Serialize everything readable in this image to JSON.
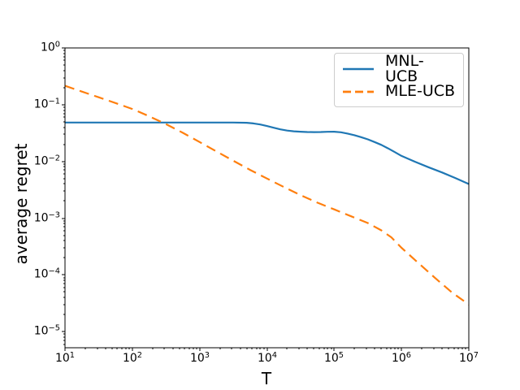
{
  "figure": {
    "background": "#ffffff",
    "axis_color": "#000000",
    "tick_label_color": "#000000"
  },
  "chart_data": {
    "type": "line",
    "title": "",
    "xlabel": "T",
    "ylabel": "average regret",
    "x_scale": "log",
    "y_scale": "log",
    "xlim": [
      10,
      10000000
    ],
    "ylim": [
      5.2e-06,
      1.0
    ],
    "grid": false,
    "legend": {
      "position": "upper right",
      "border_color": "#cccccc",
      "background": "#ffffff"
    },
    "x_ticks": [
      {
        "base": "10",
        "exp": "1",
        "value": 1
      },
      {
        "base": "10",
        "exp": "2",
        "value": 2
      },
      {
        "base": "10",
        "exp": "3",
        "value": 3
      },
      {
        "base": "10",
        "exp": "4",
        "value": 4
      },
      {
        "base": "10",
        "exp": "5",
        "value": 5
      },
      {
        "base": "10",
        "exp": "6",
        "value": 6
      },
      {
        "base": "10",
        "exp": "7",
        "value": 7
      }
    ],
    "y_ticks": [
      {
        "base": "10",
        "exp": "0",
        "value": 0
      },
      {
        "base": "10",
        "exp": "−1",
        "value": -1
      },
      {
        "base": "10",
        "exp": "−2",
        "value": -2
      },
      {
        "base": "10",
        "exp": "−3",
        "value": -3
      },
      {
        "base": "10",
        "exp": "−4",
        "value": -4
      },
      {
        "base": "10",
        "exp": "−5",
        "value": -5
      }
    ],
    "series": [
      {
        "name": "MNL-UCB",
        "color": "#1f77b4",
        "line_style": "solid",
        "points": [
          [
            10,
            0.0485
          ],
          [
            100,
            0.0485
          ],
          [
            1000,
            0.0485
          ],
          [
            3160,
            0.0485
          ],
          [
            5010,
            0.048
          ],
          [
            6310,
            0.0468
          ],
          [
            7940,
            0.0448
          ],
          [
            10000,
            0.042
          ],
          [
            12600,
            0.0392
          ],
          [
            15800,
            0.0368
          ],
          [
            20000,
            0.035
          ],
          [
            25100,
            0.034
          ],
          [
            31600,
            0.0334
          ],
          [
            39800,
            0.033
          ],
          [
            50100,
            0.0328
          ],
          [
            63100,
            0.033
          ],
          [
            79400,
            0.0333
          ],
          [
            100000,
            0.0334
          ],
          [
            126000,
            0.0326
          ],
          [
            158000,
            0.031
          ],
          [
            200000,
            0.029
          ],
          [
            251000,
            0.0268
          ],
          [
            316000,
            0.0245
          ],
          [
            398000,
            0.022
          ],
          [
            501000,
            0.0196
          ],
          [
            631000,
            0.017
          ],
          [
            794000,
            0.0146
          ],
          [
            1000000,
            0.0125
          ],
          [
            1580000,
            0.0099
          ],
          [
            2510000,
            0.0079
          ],
          [
            3980000,
            0.0064
          ],
          [
            6310000,
            0.0051
          ],
          [
            10000000,
            0.004
          ]
        ]
      },
      {
        "name": "MLE-UCB",
        "color": "#ff7f0e",
        "line_style": "dashed",
        "points": [
          [
            10,
            0.215
          ],
          [
            17.8,
            0.17
          ],
          [
            31.6,
            0.135
          ],
          [
            56.2,
            0.107
          ],
          [
            100,
            0.084
          ],
          [
            178,
            0.0625
          ],
          [
            316,
            0.0455
          ],
          [
            562,
            0.032
          ],
          [
            1000,
            0.022
          ],
          [
            1780,
            0.015
          ],
          [
            3160,
            0.0103
          ],
          [
            5620,
            0.0071
          ],
          [
            10000,
            0.005
          ],
          [
            17800,
            0.00355
          ],
          [
            31600,
            0.00255
          ],
          [
            56200,
            0.00188
          ],
          [
            100000,
            0.00143
          ],
          [
            178000,
            0.00108
          ],
          [
            316000,
            0.00082
          ],
          [
            501000,
            0.00061
          ],
          [
            708000,
            0.00046
          ],
          [
            1000000,
            0.0003
          ],
          [
            1780000,
            0.000162
          ],
          [
            3160000,
            8.8e-05
          ],
          [
            5620000,
            4.9e-05
          ],
          [
            10000000,
            3e-05
          ]
        ]
      }
    ]
  }
}
